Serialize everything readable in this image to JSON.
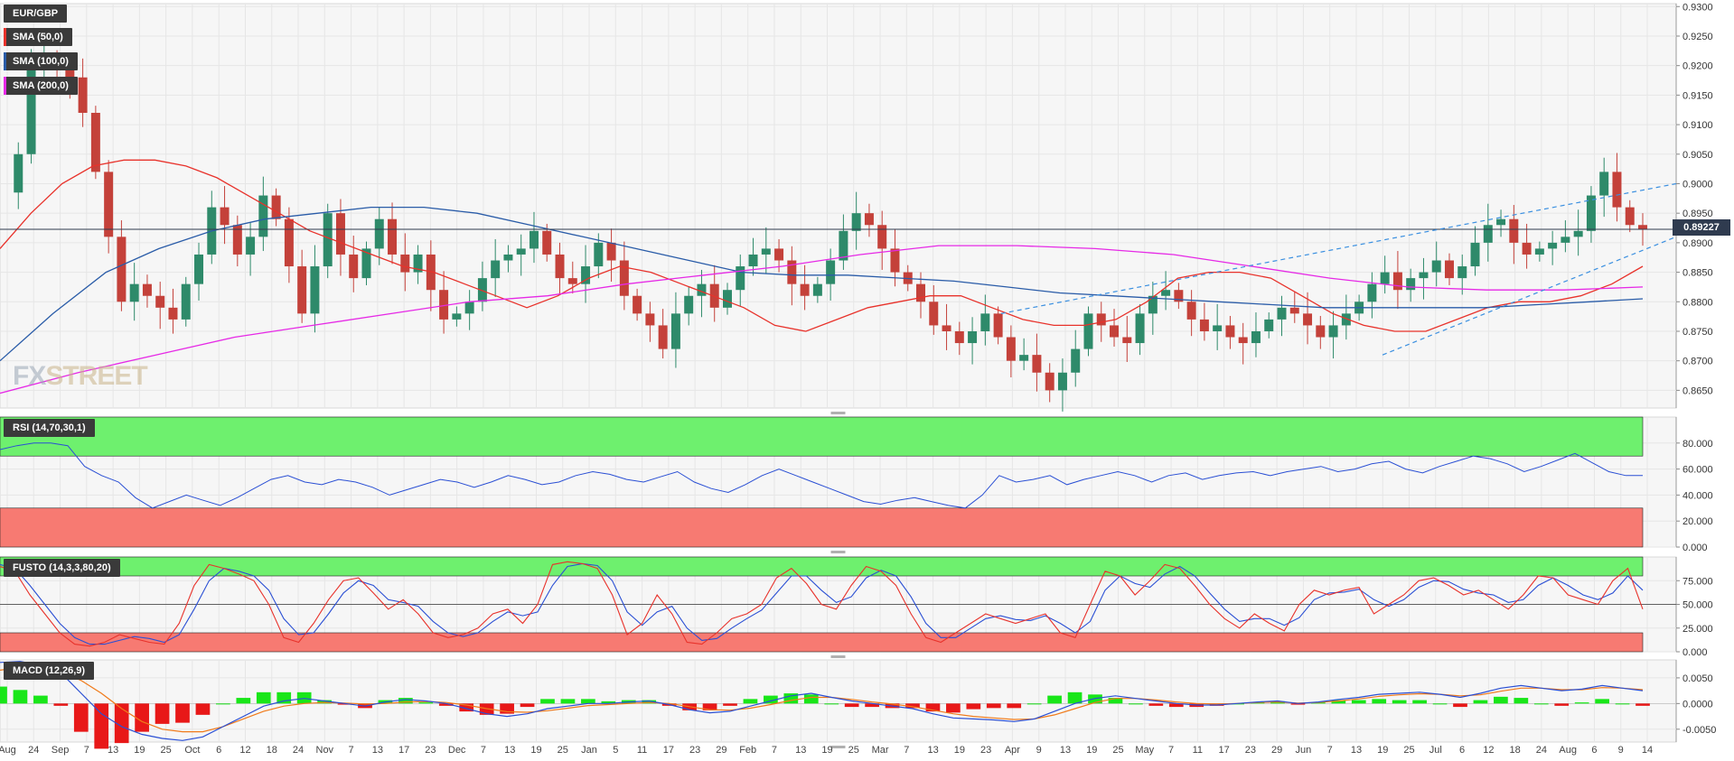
{
  "chart_data": [
    {
      "panel": "price",
      "type": "candlestick",
      "instrument": "EUR/GBP",
      "ylim": [
        0.862,
        0.9305
      ],
      "yticks": [
        "0.9300",
        "0.9250",
        "0.9200",
        "0.9150",
        "0.9100",
        "0.9050",
        "0.9000",
        "0.8950",
        "0.8900",
        "0.8850",
        "0.8800",
        "0.8750",
        "0.8700",
        "0.8650"
      ],
      "last_price": "0.89227",
      "legend": [
        "EUR/GBP",
        "SMA (50,0)",
        "SMA (100,0)",
        "SMA (200,0)"
      ],
      "series_colors": {
        "sma50": "#e8322b",
        "sma100": "#2a5ca8",
        "sma200": "#e629e6",
        "up": "#2e8a6a",
        "down": "#c4413a",
        "trend": "#3a8fe0"
      },
      "close_path": [
        0.8985,
        0.905,
        0.92,
        0.921,
        0.9195,
        0.918,
        0.912,
        0.902,
        0.891,
        0.88,
        0.883,
        0.881,
        0.879,
        0.877,
        0.883,
        0.888,
        0.896,
        0.893,
        0.888,
        0.891,
        0.898,
        0.894,
        0.886,
        0.878,
        0.886,
        0.895,
        0.888,
        0.884,
        0.889,
        0.894,
        0.888,
        0.885,
        0.888,
        0.882,
        0.877,
        0.878,
        0.88,
        0.884,
        0.887,
        0.888,
        0.889,
        0.892,
        0.888,
        0.884,
        0.883,
        0.886,
        0.89,
        0.887,
        0.881,
        0.878,
        0.876,
        0.872,
        0.878,
        0.881,
        0.883,
        0.879,
        0.882,
        0.886,
        0.888,
        0.889,
        0.887,
        0.883,
        0.881,
        0.883,
        0.887,
        0.892,
        0.895,
        0.893,
        0.889,
        0.885,
        0.883,
        0.88,
        0.876,
        0.875,
        0.873,
        0.875,
        0.878,
        0.874,
        0.87,
        0.871,
        0.868,
        0.865,
        0.868,
        0.872,
        0.878,
        0.876,
        0.874,
        0.873,
        0.878,
        0.881,
        0.882,
        0.88,
        0.877,
        0.875,
        0.876,
        0.874,
        0.873,
        0.875,
        0.877,
        0.879,
        0.878,
        0.876,
        0.874,
        0.876,
        0.878,
        0.88,
        0.883,
        0.885,
        0.882,
        0.884,
        0.885,
        0.887,
        0.884,
        0.886,
        0.89,
        0.893,
        0.894,
        0.89,
        0.888,
        0.889,
        0.89,
        0.891,
        0.892,
        0.898,
        0.902,
        0.896,
        0.893,
        0.8923
      ],
      "sma50_path": [
        0.889,
        0.895,
        0.9,
        0.903,
        0.904,
        0.904,
        0.903,
        0.901,
        0.898,
        0.895,
        0.892,
        0.89,
        0.888,
        0.886,
        0.885,
        0.883,
        0.881,
        0.879,
        0.881,
        0.884,
        0.886,
        0.885,
        0.883,
        0.881,
        0.879,
        0.876,
        0.875,
        0.877,
        0.879,
        0.88,
        0.881,
        0.881,
        0.879,
        0.877,
        0.876,
        0.876,
        0.877,
        0.88,
        0.884,
        0.885,
        0.885,
        0.884,
        0.881,
        0.878,
        0.876,
        0.875,
        0.875,
        0.877,
        0.879,
        0.88,
        0.88,
        0.881,
        0.883,
        0.886
      ],
      "sma100_path": [
        0.87,
        0.878,
        0.885,
        0.889,
        0.892,
        0.894,
        0.895,
        0.896,
        0.896,
        0.895,
        0.893,
        0.891,
        0.889,
        0.887,
        0.885,
        0.8845,
        0.8845,
        0.884,
        0.8835,
        0.8825,
        0.8815,
        0.881,
        0.8805,
        0.88,
        0.8795,
        0.879,
        0.879,
        0.879,
        0.879,
        0.8795,
        0.88,
        0.8805
      ],
      "sma200_path": [
        0.8645,
        0.868,
        0.871,
        0.874,
        0.876,
        0.878,
        0.88,
        0.881,
        0.883,
        0.8845,
        0.886,
        0.888,
        0.8895,
        0.8895,
        0.889,
        0.888,
        0.886,
        0.884,
        0.8825,
        0.882,
        0.882,
        0.8825
      ]
    },
    {
      "panel": "rsi",
      "type": "line",
      "title": "RSI (14,70,30,1)",
      "ylim": [
        0,
        100
      ],
      "yticks": [
        "80.000",
        "60.000",
        "40.000",
        "20.000",
        "0.000"
      ],
      "overbought": 70,
      "oversold": 30,
      "values": [
        75,
        78,
        80,
        80,
        78,
        62,
        55,
        50,
        38,
        30,
        35,
        40,
        36,
        32,
        38,
        45,
        52,
        55,
        50,
        48,
        52,
        50,
        46,
        40,
        44,
        48,
        52,
        50,
        46,
        50,
        55,
        52,
        48,
        50,
        55,
        58,
        56,
        52,
        50,
        54,
        58,
        50,
        45,
        42,
        48,
        55,
        60,
        55,
        50,
        45,
        40,
        35,
        33,
        36,
        38,
        35,
        32,
        30,
        40,
        55,
        50,
        52,
        55,
        48,
        52,
        55,
        58,
        55,
        50,
        55,
        57,
        52,
        55,
        57,
        58,
        55,
        58,
        60,
        62,
        58,
        60,
        64,
        66,
        60,
        57,
        62,
        66,
        70,
        68,
        64,
        58,
        62,
        67,
        72,
        65,
        58,
        55,
        55
      ]
    },
    {
      "panel": "fusto",
      "type": "line",
      "title": "FUSTO (14,3,3,80,20)",
      "ylim": [
        0,
        100
      ],
      "yticks": [
        "75.000",
        "50.000",
        "25.000",
        "0.000"
      ],
      "upper": 80,
      "lower": 20,
      "series": [
        {
          "name": "k",
          "values": [
            90,
            85,
            60,
            40,
            20,
            8,
            6,
            10,
            18,
            14,
            10,
            8,
            30,
            70,
            92,
            88,
            82,
            75,
            50,
            15,
            10,
            30,
            55,
            75,
            78,
            62,
            45,
            55,
            40,
            20,
            15,
            18,
            25,
            40,
            45,
            30,
            50,
            92,
            95,
            93,
            88,
            60,
            18,
            30,
            60,
            40,
            10,
            8,
            20,
            35,
            40,
            50,
            78,
            88,
            72,
            50,
            45,
            70,
            90,
            85,
            70,
            40,
            15,
            10,
            20,
            30,
            40,
            35,
            30,
            35,
            40,
            20,
            15,
            50,
            85,
            80,
            60,
            75,
            92,
            88,
            70,
            50,
            35,
            25,
            40,
            30,
            22,
            50,
            65,
            60,
            65,
            68,
            40,
            50,
            60,
            75,
            78,
            70,
            60,
            65,
            55,
            45,
            60,
            80,
            78,
            60,
            55,
            50,
            75,
            88,
            45
          ]
        },
        {
          "name": "d",
          "values": [
            92,
            88,
            70,
            50,
            30,
            15,
            8,
            8,
            12,
            16,
            14,
            10,
            18,
            45,
            75,
            88,
            85,
            80,
            65,
            35,
            18,
            20,
            40,
            62,
            75,
            70,
            55,
            52,
            48,
            32,
            20,
            16,
            20,
            32,
            42,
            38,
            42,
            70,
            90,
            93,
            91,
            75,
            42,
            28,
            42,
            48,
            25,
            12,
            14,
            25,
            35,
            44,
            62,
            80,
            80,
            65,
            52,
            58,
            78,
            86,
            80,
            58,
            30,
            15,
            15,
            25,
            35,
            38,
            34,
            33,
            38,
            30,
            20,
            32,
            65,
            80,
            72,
            68,
            82,
            90,
            80,
            62,
            45,
            32,
            35,
            35,
            28,
            36,
            55,
            62,
            63,
            66,
            55,
            48,
            55,
            68,
            75,
            74,
            66,
            62,
            60,
            52,
            55,
            70,
            78,
            70,
            60,
            55,
            62,
            80,
            65
          ]
        }
      ]
    },
    {
      "panel": "macd",
      "type": "line+histogram",
      "title": "MACD (12,26,9)",
      "ylim": [
        -0.0075,
        0.0085
      ],
      "yticks": [
        "0.0050",
        "0.0000",
        "-0.0050"
      ],
      "macd": [
        0.008,
        0.0082,
        0.0075,
        0.006,
        0.002,
        -0.002,
        -0.0045,
        -0.006,
        -0.0068,
        -0.0072,
        -0.0065,
        -0.0045,
        -0.0025,
        -0.0005,
        0.0005,
        0.001,
        0.0005,
        0.0,
        -0.0005,
        0.0003,
        0.0008,
        0.0005,
        0.0,
        -0.001,
        -0.002,
        -0.0025,
        -0.002,
        -0.001,
        -0.0005,
        0.0,
        0.0,
        0.0003,
        0.0005,
        -0.0002,
        -0.0012,
        -0.0018,
        -0.0015,
        -0.0005,
        0.0005,
        0.0015,
        0.002,
        0.0012,
        0.0005,
        0.0,
        -0.0005,
        -0.001,
        -0.002,
        -0.0028,
        -0.003,
        -0.0032,
        -0.0035,
        -0.003,
        -0.0015,
        0.0,
        0.001,
        0.0015,
        0.001,
        0.0005,
        0.0,
        -0.0003,
        -0.0003,
        0.0,
        0.0003,
        0.0005,
        0.0,
        0.0003,
        0.0008,
        0.0012,
        0.0018,
        0.002,
        0.0022,
        0.0018,
        0.0012,
        0.002,
        0.003,
        0.0035,
        0.003,
        0.0025,
        0.0028,
        0.0035,
        0.003,
        0.0025
      ],
      "signal": [
        0.0065,
        0.007,
        0.0068,
        0.0062,
        0.0045,
        0.002,
        -0.001,
        -0.0035,
        -0.005,
        -0.0055,
        -0.0055,
        -0.0045,
        -0.003,
        -0.0015,
        -0.0005,
        0.0,
        0.0002,
        0.0001,
        -0.0001,
        0.0,
        0.0003,
        0.0004,
        0.0002,
        -0.0003,
        -0.001,
        -0.0016,
        -0.0017,
        -0.0014,
        -0.0009,
        -0.0004,
        -0.0002,
        0.0,
        0.0002,
        0.0,
        -0.0006,
        -0.0012,
        -0.0013,
        -0.0009,
        -0.0002,
        0.0006,
        0.0012,
        0.0012,
        0.0008,
        0.0003,
        -0.0001,
        -0.0006,
        -0.0013,
        -0.002,
        -0.0025,
        -0.0028,
        -0.0031,
        -0.003,
        -0.0022,
        -0.001,
        0.0002,
        0.001,
        0.001,
        0.0007,
        0.0003,
        0.0,
        -0.0001,
        0.0,
        0.0002,
        0.0003,
        0.0001,
        0.0002,
        0.0005,
        0.0009,
        0.0014,
        0.0017,
        0.0019,
        0.0018,
        0.0015,
        0.0017,
        0.0024,
        0.003,
        0.003,
        0.0027,
        0.0027,
        0.0031,
        0.003,
        0.0027
      ]
    },
    {
      "panel": "x_axis",
      "labels": [
        "Aug",
        "24",
        "Sep",
        "7",
        "13",
        "19",
        "25",
        "Oct",
        "6",
        "12",
        "18",
        "24",
        "Nov",
        "7",
        "13",
        "17",
        "23",
        "Dec",
        "7",
        "13",
        "19",
        "25",
        "Jan",
        "5",
        "11",
        "17",
        "23",
        "29",
        "Feb",
        "7",
        "13",
        "19",
        "25",
        "Mar",
        "7",
        "13",
        "19",
        "23",
        "Apr",
        "9",
        "13",
        "19",
        "25",
        "May",
        "7",
        "11",
        "17",
        "23",
        "29",
        "Jun",
        "7",
        "13",
        "19",
        "25",
        "Jul",
        "6",
        "12",
        "18",
        "24",
        "Aug",
        "6",
        "9",
        "14"
      ]
    }
  ],
  "watermark": {
    "part1": "FX",
    "part2": "STREET"
  }
}
